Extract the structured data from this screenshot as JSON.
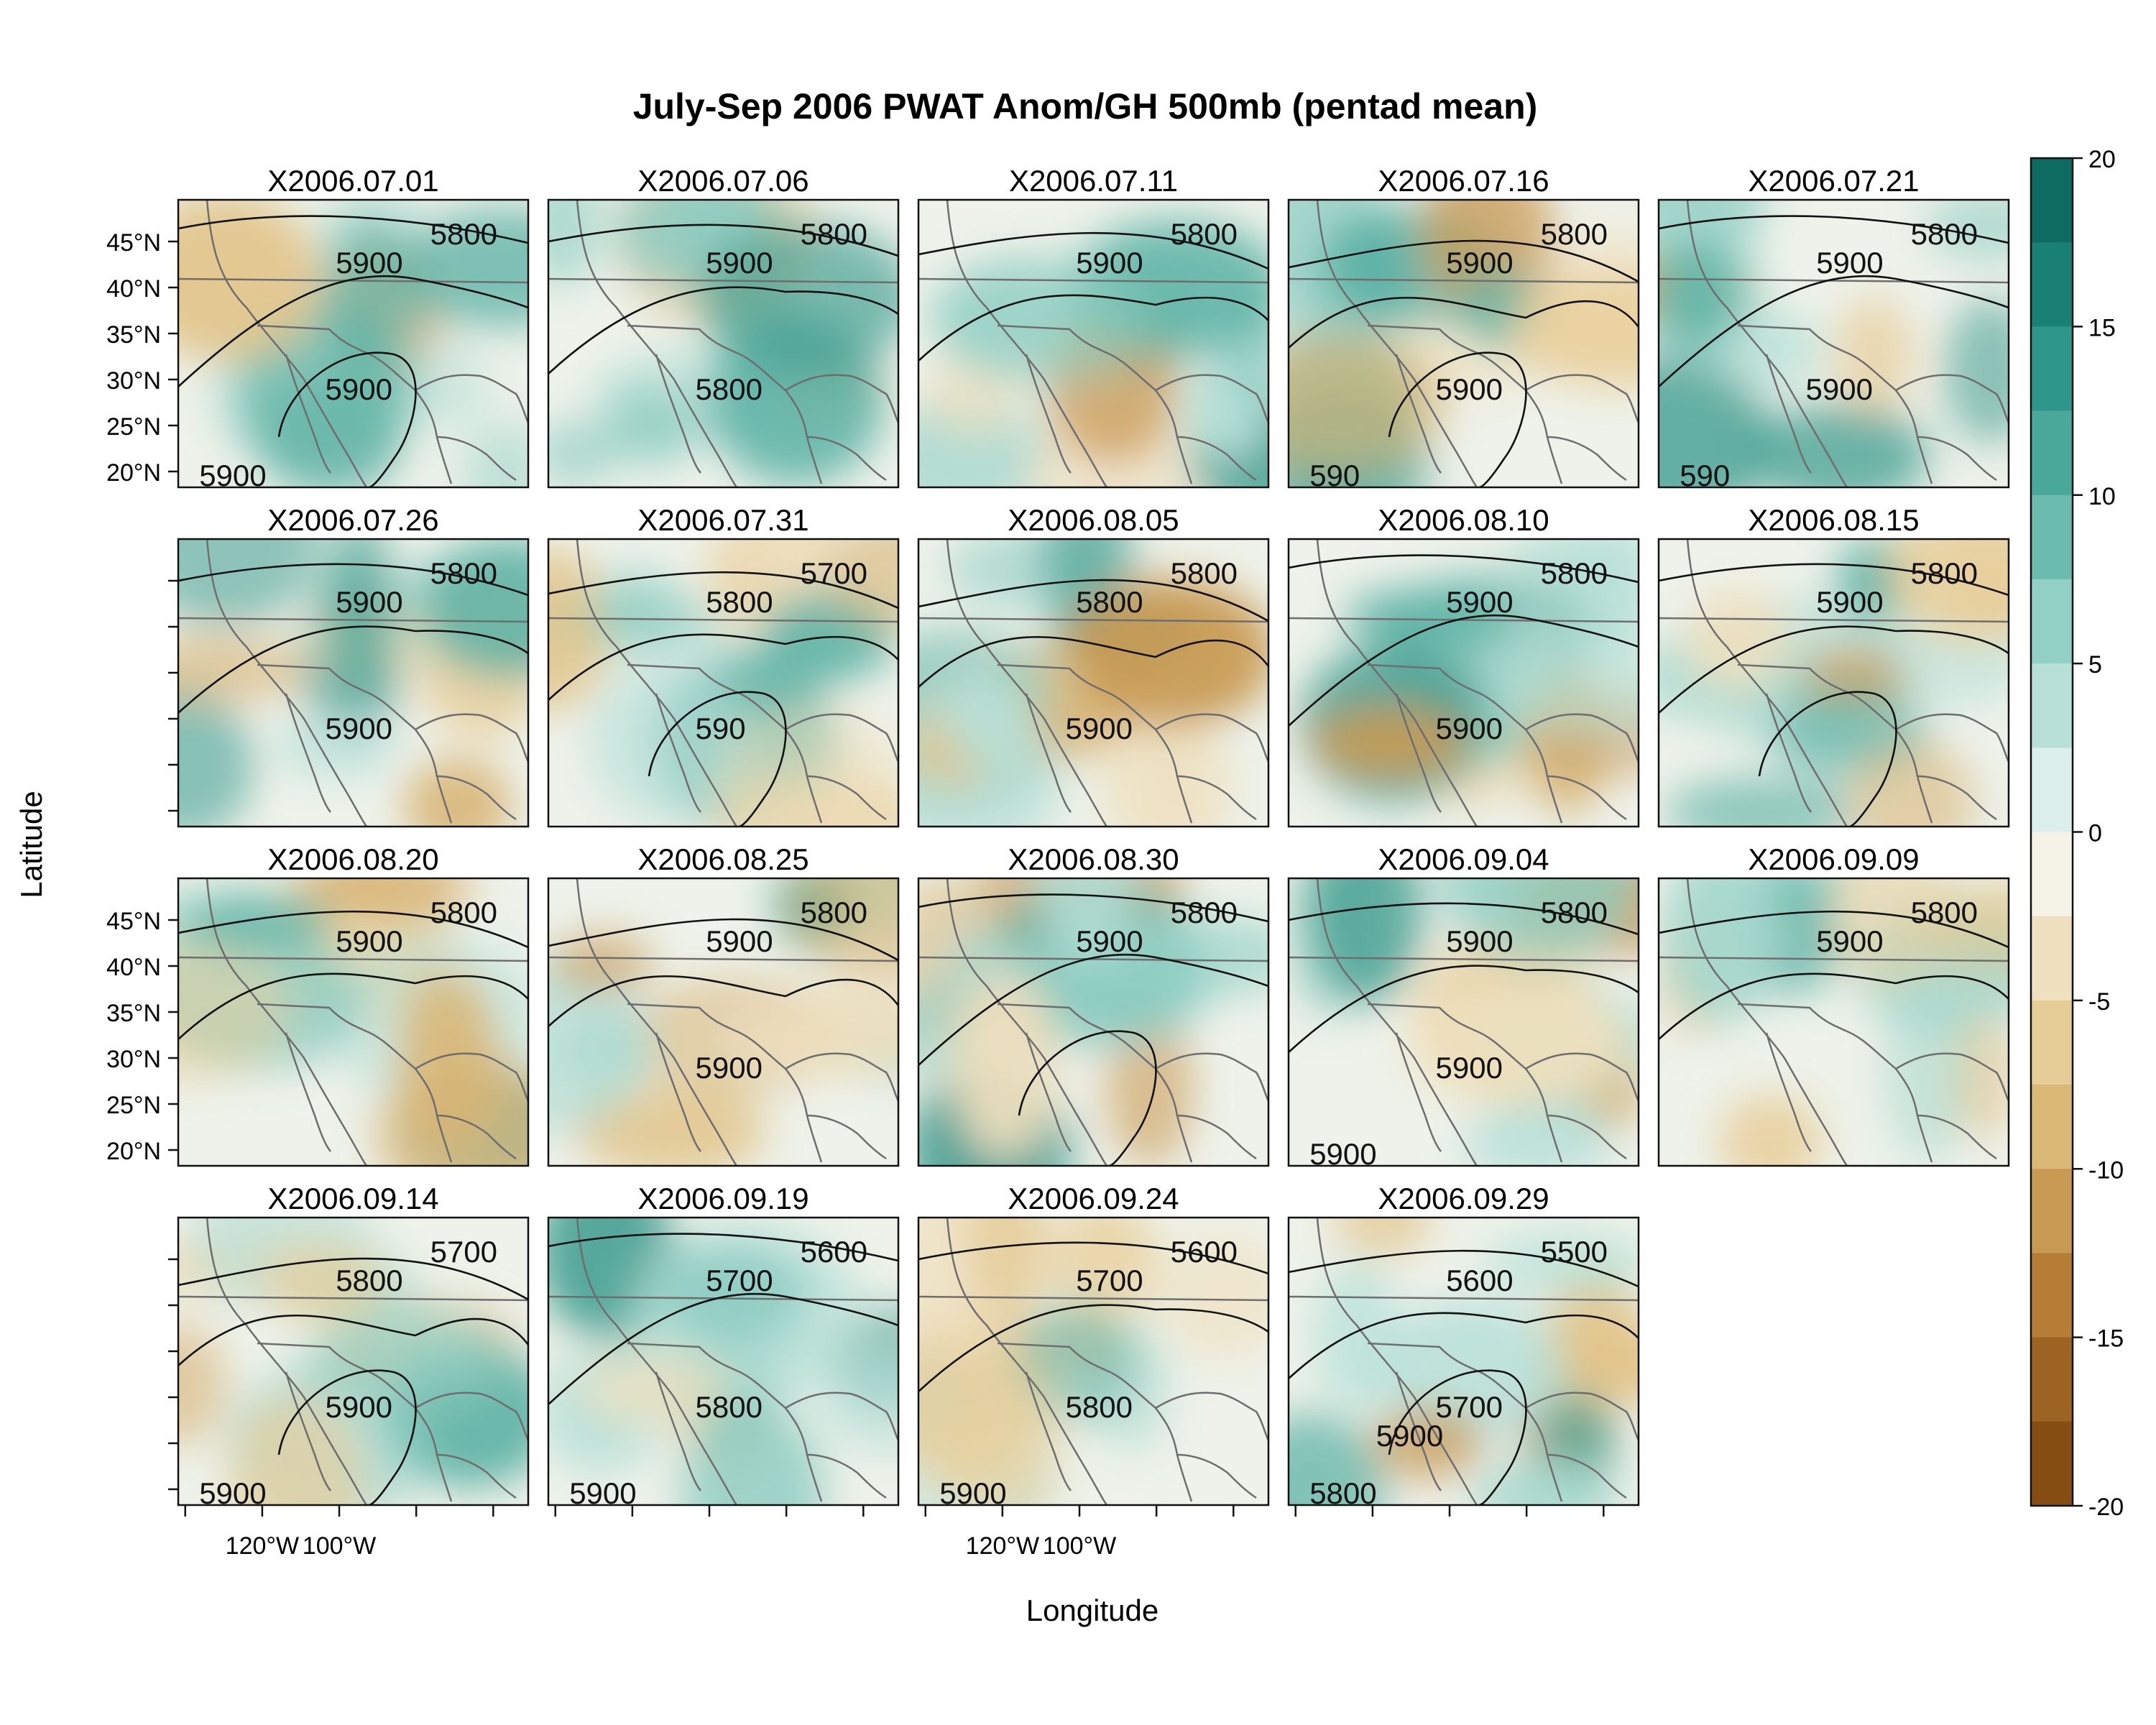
{
  "title": "July-Sep 2006 PWAT Anom/GH 500mb (pentad mean)",
  "xlabel": "Longitude",
  "ylabel": "Latitude",
  "lat_ticks": [
    "45°N",
    "40°N",
    "35°N",
    "30°N",
    "25°N",
    "20°N"
  ],
  "lon_ticks": [
    "120°W",
    "100°W"
  ],
  "colorbar": {
    "ticks": [
      "20",
      "15",
      "10",
      "5",
      "0",
      "-5",
      "-10",
      "-15",
      "-20"
    ],
    "colors": [
      "#0d6b61",
      "#1a7f75",
      "#2e968a",
      "#4aa89b",
      "#6bbcaf",
      "#92cfc4",
      "#b8e0d8",
      "#dcefeb",
      "#f5f2e8",
      "#efe0bf",
      "#e6cc96",
      "#dab875",
      "#c99a54",
      "#b57d35",
      "#9c6322",
      "#864d12"
    ]
  },
  "panels": [
    {
      "date": "X2006.07.01",
      "contours": [
        "5800",
        "5900",
        "5900",
        "5900"
      ]
    },
    {
      "date": "X2006.07.06",
      "contours": [
        "5800",
        "5900",
        "5800"
      ]
    },
    {
      "date": "X2006.07.11",
      "contours": [
        "5800",
        "5900"
      ]
    },
    {
      "date": "X2006.07.16",
      "contours": [
        "5800",
        "5900",
        "5900",
        "590"
      ]
    },
    {
      "date": "X2006.07.21",
      "contours": [
        "5800",
        "5900",
        "5900",
        "590"
      ]
    },
    {
      "date": "X2006.07.26",
      "contours": [
        "5800",
        "5900",
        "5900"
      ]
    },
    {
      "date": "X2006.07.31",
      "contours": [
        "5700",
        "5800",
        "590"
      ]
    },
    {
      "date": "X2006.08.05",
      "contours": [
        "5800",
        "5800",
        "5900"
      ]
    },
    {
      "date": "X2006.08.10",
      "contours": [
        "5800",
        "5900",
        "5900"
      ]
    },
    {
      "date": "X2006.08.15",
      "contours": [
        "5800",
        "5900"
      ]
    },
    {
      "date": "X2006.08.20",
      "contours": [
        "5800",
        "5900"
      ]
    },
    {
      "date": "X2006.08.25",
      "contours": [
        "5800",
        "5900",
        "5900"
      ]
    },
    {
      "date": "X2006.08.30",
      "contours": [
        "5800",
        "5900"
      ]
    },
    {
      "date": "X2006.09.04",
      "contours": [
        "5800",
        "5900",
        "5900",
        "5900"
      ]
    },
    {
      "date": "X2006.09.09",
      "contours": [
        "5800",
        "5900"
      ]
    },
    {
      "date": "X2006.09.14",
      "contours": [
        "5700",
        "5800",
        "5900",
        "5900"
      ]
    },
    {
      "date": "X2006.09.19",
      "contours": [
        "5600",
        "5700",
        "5800",
        "5900"
      ]
    },
    {
      "date": "X2006.09.24",
      "contours": [
        "5600",
        "5700",
        "5800",
        "5900"
      ]
    },
    {
      "date": "X2006.09.29",
      "contours": [
        "5500",
        "5600",
        "5700",
        "5800",
        "5900"
      ]
    }
  ]
}
